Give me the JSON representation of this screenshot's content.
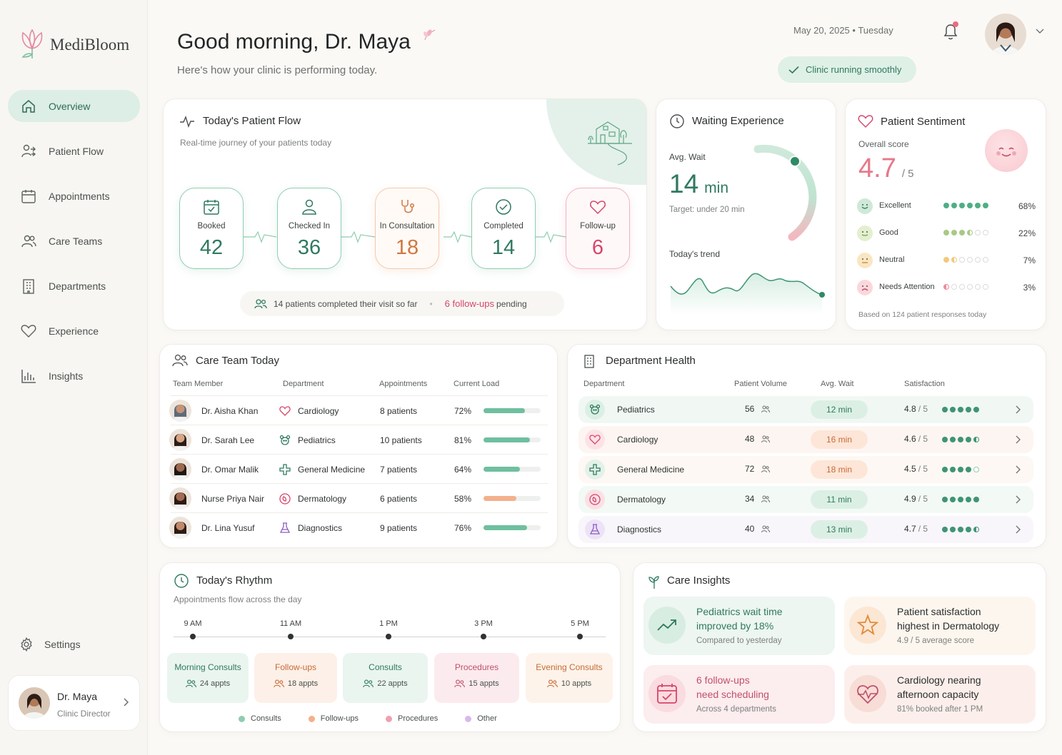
{
  "app": {
    "name": "MediBloom"
  },
  "sidebar": {
    "items": [
      {
        "label": "Overview",
        "icon": "home-icon"
      },
      {
        "label": "Patient Flow",
        "icon": "users-arrow-icon"
      },
      {
        "label": "Appointments",
        "icon": "calendar-icon"
      },
      {
        "label": "Care Teams",
        "icon": "team-icon"
      },
      {
        "label": "Departments",
        "icon": "building-icon"
      },
      {
        "label": "Experience",
        "icon": "heart-icon"
      },
      {
        "label": "Insights",
        "icon": "bar-chart-icon"
      }
    ],
    "settings": "Settings",
    "user": {
      "name": "Dr. Maya",
      "role": "Clinic Director"
    }
  },
  "header": {
    "greeting": "Good morning, Dr. Maya",
    "subtitle": "Here's how your clinic is performing today.",
    "date": "May 20, 2025",
    "day": "Tuesday",
    "status": "Clinic running smoothly"
  },
  "patient_flow": {
    "title": "Today's Patient Flow",
    "subtitle": "Real-time journey of your patients today",
    "stages": [
      {
        "label": "Booked",
        "value": "42",
        "color": "#2f7a5e"
      },
      {
        "label": "Checked In",
        "value": "36",
        "color": "#2f7a5e"
      },
      {
        "label": "In Consultation",
        "value": "18",
        "color": "#d0773f"
      },
      {
        "label": "Completed",
        "value": "14",
        "color": "#2f7a5e"
      },
      {
        "label": "Follow-up",
        "value": "6",
        "color": "#d6466a"
      }
    ],
    "summary_completed": "14 patients completed their visit so far",
    "summary_followups": "6 follow-ups",
    "summary_pending": "pending"
  },
  "waiting": {
    "title": "Waiting Experience",
    "avg_label": "Avg. Wait",
    "avg_value": "14",
    "avg_unit": "min",
    "target": "Target: under 20 min",
    "trend_label": "Today's trend"
  },
  "sentiment": {
    "title": "Patient Sentiment",
    "overall_label": "Overall score",
    "score": "4.7",
    "out_of": "/ 5",
    "rows": [
      {
        "label": "Excellent",
        "pct": "68%",
        "filled": 6,
        "color": "#4fae84",
        "face": "#cfe9d9"
      },
      {
        "label": "Good",
        "pct": "22%",
        "filled": 3.5,
        "color": "#a8c986",
        "face": "#e4efcf"
      },
      {
        "label": "Neutral",
        "pct": "7%",
        "filled": 1.5,
        "color": "#f2c97d",
        "face": "#fbe6c2"
      },
      {
        "label": "Needs Attention",
        "pct": "3%",
        "filled": 0.5,
        "color": "#ee8a9a",
        "face": "#fbd7dc"
      }
    ],
    "footnote": "Based on 124 patient responses today"
  },
  "care_team": {
    "title": "Care Team Today",
    "headers": [
      "Team Member",
      "Department",
      "Appointments",
      "Current Load"
    ],
    "rows": [
      {
        "name": "Dr. Aisha Khan",
        "dept": "Cardiology",
        "appts": "8 patients",
        "load": "72%",
        "load_value": 72,
        "color": "#6fbf9f"
      },
      {
        "name": "Dr. Sarah Lee",
        "dept": "Pediatrics",
        "appts": "10 patients",
        "load": "81%",
        "load_value": 81,
        "color": "#6fbf9f"
      },
      {
        "name": "Dr. Omar Malik",
        "dept": "General Medicine",
        "appts": "7 patients",
        "load": "64%",
        "load_value": 64,
        "color": "#6fbf9f"
      },
      {
        "name": "Nurse Priya Nair",
        "dept": "Dermatology",
        "appts": "6 patients",
        "load": "58%",
        "load_value": 58,
        "color": "#f4b08c"
      },
      {
        "name": "Dr. Lina Yusuf",
        "dept": "Diagnostics",
        "appts": "9 patients",
        "load": "76%",
        "load_value": 76,
        "color": "#6fbf9f"
      }
    ]
  },
  "dept_health": {
    "title": "Department Health",
    "headers": [
      "Department",
      "Patient Volume",
      "Avg. Wait",
      "Satisfaction"
    ],
    "rows": [
      {
        "name": "Pediatrics",
        "volume": "56",
        "wait": "12 min",
        "sat": "4.8",
        "stars": 5,
        "bg": "#f1f8f4",
        "pill_bg": "#dcefe5",
        "pill_fg": "#2f7a5e"
      },
      {
        "name": "Cardiology",
        "volume": "48",
        "wait": "16 min",
        "sat": "4.6",
        "stars": 4.5,
        "bg": "#fdf5f1",
        "pill_bg": "#fde6d8",
        "pill_fg": "#c86a36"
      },
      {
        "name": "General Medicine",
        "volume": "72",
        "wait": "18 min",
        "sat": "4.5",
        "stars": 4,
        "bg": "#fdf8f3",
        "pill_bg": "#fde6d8",
        "pill_fg": "#c86a36"
      },
      {
        "name": "Dermatology",
        "volume": "34",
        "wait": "11 min",
        "sat": "4.9",
        "stars": 5,
        "bg": "#f3f9f5",
        "pill_bg": "#dcefe5",
        "pill_fg": "#2f7a5e"
      },
      {
        "name": "Diagnostics",
        "volume": "40",
        "wait": "13 min",
        "sat": "4.7",
        "stars": 4.5,
        "bg": "#f8f6fb",
        "pill_bg": "#dcefe5",
        "pill_fg": "#2f7a5e"
      }
    ],
    "out_of": "/ 5"
  },
  "rhythm": {
    "title": "Today's Rhythm",
    "subtitle": "Appointments flow across the day",
    "times": [
      "9 AM",
      "11 AM",
      "1 PM",
      "3 PM",
      "5 PM"
    ],
    "blocks": [
      {
        "label": "Morning Consults",
        "count": "24 appts",
        "bg": "#eaf5ef",
        "fg": "#2f7a5e"
      },
      {
        "label": "Follow-ups",
        "count": "18 appts",
        "bg": "#fdf0e8",
        "fg": "#c86a36"
      },
      {
        "label": "Consults",
        "count": "22 appts",
        "bg": "#eaf5ef",
        "fg": "#2f7a5e"
      },
      {
        "label": "Procedures",
        "count": "15 appts",
        "bg": "#fcebee",
        "fg": "#c0506a"
      },
      {
        "label": "Evening Consults",
        "count": "10 appts",
        "bg": "#fdf3ea",
        "fg": "#c86a36"
      }
    ],
    "legend": [
      {
        "label": "Consults",
        "color": "#8fcdb0"
      },
      {
        "label": "Follow-ups",
        "color": "#f4b08c"
      },
      {
        "label": "Procedures",
        "color": "#f0a0ae"
      },
      {
        "label": "Other",
        "color": "#d9b8ec"
      }
    ]
  },
  "insights": {
    "title": "Care Insights",
    "cards": [
      {
        "line1": "Pediatrics wait time",
        "line2": "improved by 18%",
        "sub": "Compared to yesterday",
        "bg": "#edf6f1",
        "fg": "#2f7a5e"
      },
      {
        "line1": "Patient satisfaction",
        "line2": "highest in Dermatology",
        "sub": "4.9 / 5 average score",
        "bg": "#fdf6ef",
        "fg": "#2a2e2d"
      },
      {
        "line1": "6 follow-ups",
        "line2": "need scheduling",
        "sub": "Across 4 departments",
        "bg": "#fcedef",
        "fg": "#c0506a"
      },
      {
        "line1": "Cardiology nearing",
        "line2": "afternoon capacity",
        "sub": "81% booked after 1 PM",
        "bg": "#fcefeb",
        "fg": "#2a2e2d"
      }
    ]
  }
}
